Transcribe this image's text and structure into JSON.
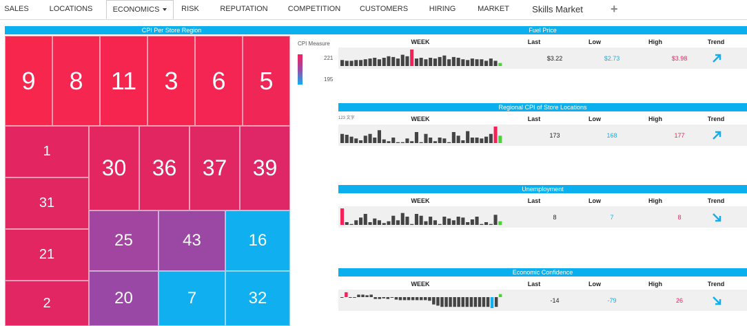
{
  "nav": {
    "tabs": [
      "SALES",
      "LOCATIONS",
      "ECONOMICS",
      "RISK",
      "REPUTATION",
      "COMPETITION",
      "CUSTOMERS",
      "HIRING",
      "MARKET",
      "Skills Market"
    ],
    "active": "ECONOMICS",
    "add_label": "+"
  },
  "treemap": {
    "title": "CPI Per Store Region",
    "tiles": [
      {
        "label": "9",
        "color": "#f7264d"
      },
      {
        "label": "8",
        "color": "#f5264f"
      },
      {
        "label": "11",
        "color": "#f5254f"
      },
      {
        "label": "3",
        "color": "#f5254f"
      },
      {
        "label": "6",
        "color": "#f42552"
      },
      {
        "label": "5",
        "color": "#f02656"
      },
      {
        "label": "1",
        "color": "#e32661"
      },
      {
        "label": "31",
        "color": "#e22662"
      },
      {
        "label": "21",
        "color": "#e22662"
      },
      {
        "label": "2",
        "color": "#e12663"
      },
      {
        "label": "30",
        "color": "#e42660"
      },
      {
        "label": "36",
        "color": "#e22662"
      },
      {
        "label": "37",
        "color": "#e12664"
      },
      {
        "label": "39",
        "color": "#df2767"
      },
      {
        "label": "25",
        "color": "#a145a1"
      },
      {
        "label": "20",
        "color": "#9a48a6"
      },
      {
        "label": "43",
        "color": "#9b48a5"
      },
      {
        "label": "16",
        "color": "#10b0f0"
      },
      {
        "label": "7",
        "color": "#10b0f0"
      },
      {
        "label": "32",
        "color": "#10b0f0"
      }
    ]
  },
  "legend": {
    "title": "CPI Measure",
    "max": "221",
    "min": "195"
  },
  "colors": {
    "accent": "#0ab0ee",
    "red": "#f5225a",
    "blue": "#11aef0",
    "green": "#4cd137",
    "bar": "#444444"
  },
  "headers": {
    "week": "WEEK",
    "last": "Last",
    "low": "Low",
    "high": "High",
    "trend": "Trend"
  },
  "panels": [
    {
      "title": "Fuel Price",
      "last": "$3.22",
      "low": "$2.73",
      "high": "$3.98",
      "trend": "up",
      "values": [
        8,
        7,
        7,
        8,
        8,
        9,
        10,
        11,
        9,
        11,
        13,
        12,
        10,
        15,
        13,
        22,
        10,
        11,
        9,
        11,
        10,
        12,
        14,
        9,
        12,
        11,
        9,
        8,
        10,
        9,
        9,
        7,
        10,
        7,
        4
      ]
    },
    {
      "title": "Regional CPI of Store Locations",
      "last": "173",
      "low": "168",
      "high": "177",
      "trend": "up",
      "values": [
        10,
        9,
        7,
        5,
        3,
        8,
        10,
        6,
        14,
        4,
        2,
        6,
        1,
        1,
        5,
        2,
        12,
        1,
        10,
        6,
        2,
        6,
        5,
        1,
        12,
        8,
        3,
        13,
        6,
        6,
        5,
        7,
        10,
        18,
        8
      ]
    },
    {
      "title": "Unemployment",
      "last": "8",
      "low": "7",
      "high": "8",
      "trend": "down",
      "values": [
        18,
        3,
        1,
        5,
        8,
        12,
        3,
        7,
        5,
        2,
        4,
        10,
        5,
        13,
        9,
        1,
        12,
        10,
        4,
        9,
        5,
        1,
        9,
        7,
        5,
        9,
        8,
        3,
        6,
        9,
        1,
        3,
        1,
        11,
        4
      ]
    },
    {
      "title": "Economic Confidence",
      "last": "-14",
      "low": "-79",
      "high": "26",
      "trend": "down",
      "values": [
        -1,
        8,
        -1,
        -1,
        4,
        4,
        3,
        4,
        -3,
        -3,
        -2,
        -3,
        -1,
        -4,
        -5,
        -5,
        -5,
        -5,
        -5,
        -5,
        -5,
        -6,
        -12,
        -14,
        -16,
        -16,
        -16,
        -16,
        -16,
        -16,
        -16,
        -16,
        -16,
        -16,
        -16,
        -16,
        -18,
        -16,
        5
      ]
    }
  ],
  "tiny_label": "123 文字"
}
